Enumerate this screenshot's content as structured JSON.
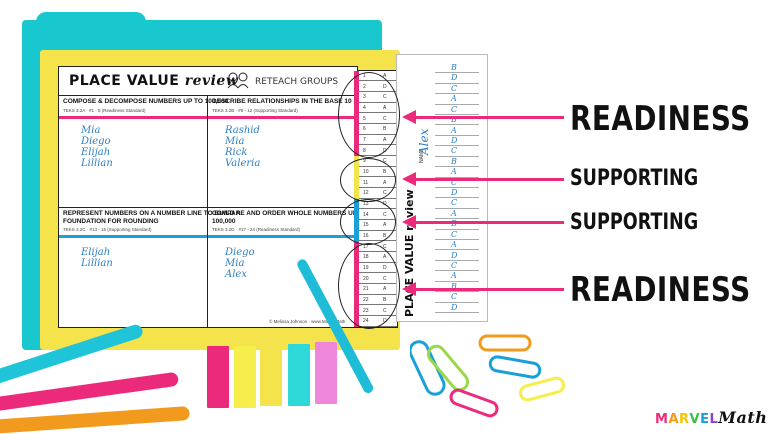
{
  "worksheet": {
    "title_main": "PLACE VALUE",
    "title_script": "review",
    "reteach_label": "RETEACH GROUPS",
    "footer": "© Melissa Johnson · www.MarvelMath",
    "cells": [
      {
        "heading": "COMPOSE & DECOMPOSE NUMBERS UP TO 100,000",
        "sub": "TEKS 3.2A · #1 - 8 (Readiness Standard)",
        "bar_color": "#ec2a7b",
        "names": [
          "Mia",
          "Diego",
          "Elijah",
          "Lillian"
        ]
      },
      {
        "heading": "DESCRIBE RELATIONSHIPS IN THE BASE 10 SYSTEM",
        "sub": "TEKS 3.2B · #9 - 12 (Supporting Standard)",
        "bar_color": "#ec2a7b",
        "names": [
          "Rashid",
          "Mia",
          "Rick",
          "Valeria"
        ]
      },
      {
        "heading_line1": "REPRESENT NUMBERS ON A NUMBER LINE TO BUILD A",
        "heading_line2": "FOUNDATION FOR ROUNDING",
        "sub": "TEKS 3.2C · #13 - 16 (Supporting Standard)",
        "bar_color": "#1aa0d8",
        "names": [
          "Elijah",
          "Lillian"
        ]
      },
      {
        "heading_line1": "COMPARE AND ORDER WHOLE NUMBERS UP TO",
        "heading_line2": "100,000",
        "sub": "TEKS 3.2D · #17 - 24 (Readiness Standard)",
        "bar_color": "#1aa0d8",
        "names": [
          "Diego",
          "Mia",
          "Alex"
        ]
      }
    ]
  },
  "answer_key": {
    "rows": [
      {
        "n": "1",
        "a": "A"
      },
      {
        "n": "2",
        "a": "D"
      },
      {
        "n": "3",
        "a": "C"
      },
      {
        "n": "4",
        "a": "A"
      },
      {
        "n": "5",
        "a": "C"
      },
      {
        "n": "6",
        "a": "B"
      },
      {
        "n": "7",
        "a": "A"
      },
      {
        "n": "8",
        "a": "D"
      },
      {
        "n": "9",
        "a": "C"
      },
      {
        "n": "10",
        "a": "B"
      },
      {
        "n": "11",
        "a": "A"
      },
      {
        "n": "12",
        "a": "C"
      },
      {
        "n": "13",
        "a": "D"
      },
      {
        "n": "14",
        "a": "C"
      },
      {
        "n": "15",
        "a": "A"
      },
      {
        "n": "16",
        "a": "B"
      },
      {
        "n": "17",
        "a": "C"
      },
      {
        "n": "18",
        "a": "A"
      },
      {
        "n": "19",
        "a": "D"
      },
      {
        "n": "20",
        "a": "C"
      },
      {
        "n": "21",
        "a": "A"
      },
      {
        "n": "22",
        "a": "B"
      },
      {
        "n": "23",
        "a": "C"
      },
      {
        "n": "24",
        "a": "D"
      }
    ],
    "colors": [
      "#ec2a7b",
      "#f4e34a",
      "#1aa0d8",
      "#ec2a7b"
    ]
  },
  "student_sheet": {
    "title_main": "PLACE VALUE",
    "title_script": "review",
    "name_label": "NAME",
    "student_name": "Alex",
    "answers": [
      "B",
      "D",
      "C",
      "A",
      "C",
      "B",
      "A",
      "D",
      "C",
      "B",
      "A",
      "C",
      "D",
      "C",
      "A",
      "B",
      "C",
      "A",
      "D",
      "C",
      "A",
      "B",
      "C",
      "D"
    ]
  },
  "labels": {
    "readiness_top": "READINESS",
    "supporting_1": "SUPPORTING",
    "supporting_2": "SUPPORTING",
    "readiness_bottom": "READINESS"
  },
  "logo": {
    "letters": [
      {
        "ch": "M",
        "color": "#ec2a7b"
      },
      {
        "ch": "A",
        "color": "#f29a1d"
      },
      {
        "ch": "R",
        "color": "#f4c400"
      },
      {
        "ch": "V",
        "color": "#3cc04a"
      },
      {
        "ch": "E",
        "color": "#1aa0d8"
      },
      {
        "ch": "L",
        "color": "#8a3fcf"
      }
    ],
    "word": "Math"
  },
  "colors": {
    "teal_folder": "#19c7cf",
    "yellow_folder": "#f4e34a",
    "arrow": "#ec2a7b",
    "handwriting": "#2e7fc4"
  },
  "flags": [
    "#ec2a7b",
    "#f4e34a",
    "#f4e34a",
    "#2fd8d8",
    "#e86ad8"
  ]
}
